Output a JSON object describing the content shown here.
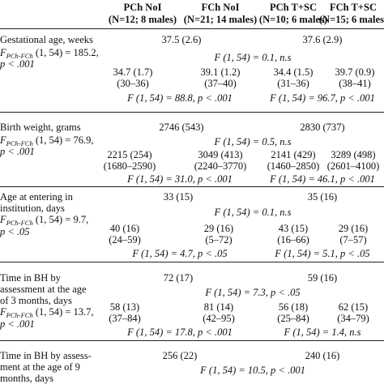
{
  "headers": {
    "col1": {
      "line1": "PCh NoI",
      "line2": "(N=12; 8 males)"
    },
    "col2": {
      "line1": "FCh NoI",
      "line2": "(N=21; 14 males)"
    },
    "col3": {
      "line1": "PCh T+SC",
      "line2": "(N=10; 6 males)"
    },
    "col4": {
      "line1": "FCh T+SC",
      "line2": "(N=15; 6 males)"
    }
  },
  "rows": {
    "gestational": {
      "label_lines": [
        "Gestational age, weeks"
      ],
      "stat_prefix": "F",
      "stat_sub": "PCh-FCh",
      "stat_value": "(1, 54) = 185.2,",
      "stat_p": "p < .001",
      "group_left": "37.5 (2.6)",
      "group_right": "37.6 (2.9)",
      "group_f": "F (1, 54) = 0.1, n.s",
      "col_vals": [
        "34.7 (1.7)",
        "39.1 (1.2)",
        "34.4 (1.5)",
        "39.7 (0.9)"
      ],
      "col_ranges": [
        "(30–36)",
        "(37–40)",
        "(31–36)",
        "(38–41)"
      ],
      "bottom_left": "F (1, 54) = 88.8, p < .001",
      "bottom_right": "F (1, 54) = 96.7, p < .001"
    },
    "birth": {
      "label_lines": [
        "Birth weight, grams"
      ],
      "stat_prefix": "F",
      "stat_sub": "PCh-FCh",
      "stat_value": "(1, 54) = 76.9,",
      "stat_p": "p < .001",
      "group_left": "2746 (543)",
      "group_right": "2830 (737)",
      "group_f": "F (1, 54) = 0.5, n.s",
      "col_vals": [
        "2215 (254)",
        "3049 (413)",
        "2141 (429)",
        "3289 (498)"
      ],
      "col_ranges": [
        "(1680–2590)",
        "(2240–3770)",
        "(1460–2850)",
        "(2601–4100)"
      ],
      "bottom_left": "F (1, 54) = 31.0, p < .001",
      "bottom_right": "F (1, 54) = 46.1, p < .001"
    },
    "age": {
      "label_lines": [
        "Age at entering in",
        "institution, days"
      ],
      "stat_prefix": "F",
      "stat_sub": "PCh-FCh",
      "stat_value": "(1, 54) = 9.7,",
      "stat_p": "p < .05",
      "group_left": "33 (15)",
      "group_right": "35 (16)",
      "group_f": "F (1, 54) = 0.1, n.s",
      "col_vals": [
        "40 (16)",
        "29 (16)",
        "43 (15)",
        "29 (16)"
      ],
      "col_ranges": [
        "(24–59)",
        "(5–72)",
        "(16–66)",
        "(7–57)"
      ],
      "bottom_left": "F (1, 54) = 4.7, p < .05",
      "bottom_right": "F (1, 54) = 5.1, p < .05"
    },
    "bh3": {
      "label_lines": [
        "Time in BH by",
        "assessment at the age",
        "of 3 months, days"
      ],
      "stat_prefix": "F",
      "stat_sub": "PCh-FCh",
      "stat_value": "(1, 54) = 13.7,",
      "stat_p": "p < .001",
      "group_left": "72 (17)",
      "group_right": "59 (16)",
      "group_f": "F (1, 54) = 7.3, p < .05",
      "col_vals": [
        "58 (13)",
        "81 (14)",
        "56 (18)",
        "62 (15)"
      ],
      "col_ranges": [
        "(37–84)",
        "(42–95)",
        "(25–84)",
        "(34–79)"
      ],
      "bottom_left": "F (1, 54) = 17.8, p < .001",
      "bottom_right": "F (1, 54) = 1.4, n.s"
    },
    "bh9": {
      "label_lines": [
        "Time in BH by assess-",
        "ment at the age of 9",
        "months, days"
      ],
      "group_left": "256 (22)",
      "group_right": "240 (16)",
      "group_f": "F (1, 54) = 10.5, p < .001"
    }
  }
}
